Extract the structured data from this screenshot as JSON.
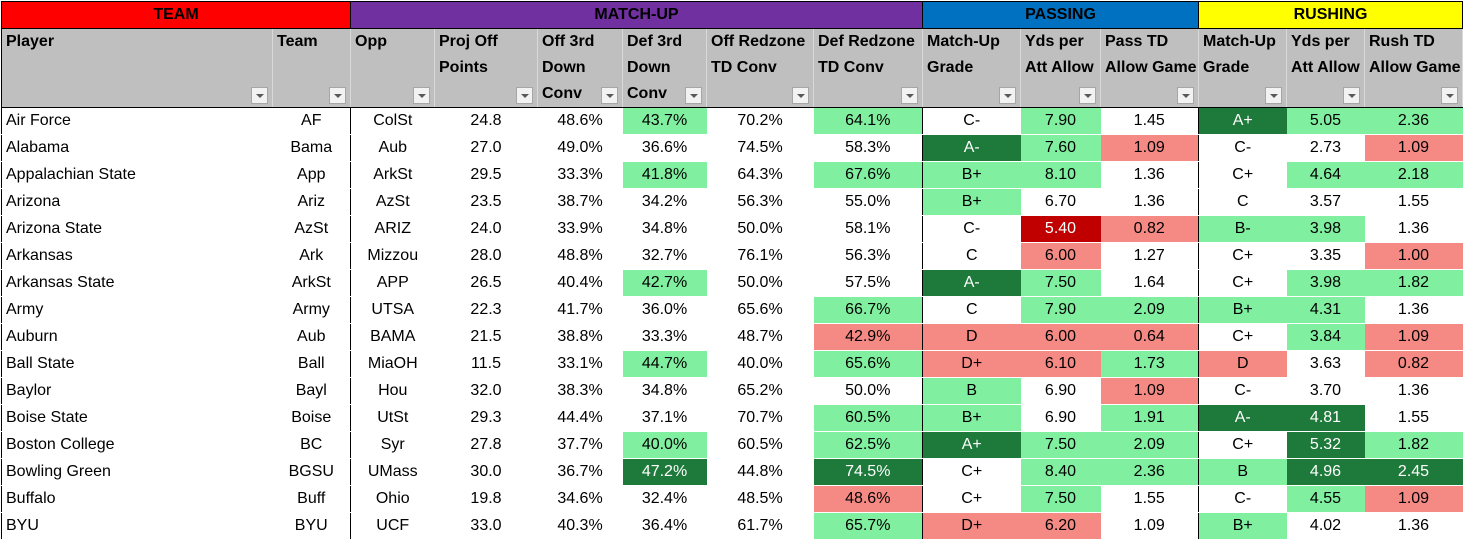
{
  "colors": {
    "team_header": "#ff0000",
    "matchup_header": "#7030a0",
    "passing_header": "#0070c0",
    "rushing_header": "#ffff00",
    "light_green": "#80f0a0",
    "dark_green": "#1d7a3a",
    "pink": "#f58a85",
    "dark_red": "#c00000"
  },
  "groups": {
    "team": "TEAM",
    "matchup": "MATCH-UP",
    "passing": "PASSING",
    "rushing": "RUSHING"
  },
  "columns": [
    "Player",
    "Team",
    "Opp",
    "Proj Off Points",
    "Off 3rd Down Conv",
    "Def 3rd Down Conv",
    "Off Redzone TD Conv",
    "Def Redzone TD Conv",
    "Match-Up Grade",
    "Yds per Att Allow",
    "Pass TD Allow Game",
    "Match-Up Grade",
    "Yds per Att Allow",
    "Rush TD Allow Game"
  ],
  "rows": [
    [
      "Air Force",
      "AF",
      "ColSt",
      "24.8",
      "48.6%",
      "43.7%",
      "70.2%",
      "64.1%",
      "C-",
      "7.90",
      "1.45",
      "A+",
      "5.05",
      "2.36"
    ],
    [
      "Alabama",
      "Bama",
      "Aub",
      "27.0",
      "49.0%",
      "36.6%",
      "74.5%",
      "58.3%",
      "A-",
      "7.60",
      "1.09",
      "C-",
      "2.73",
      "1.09"
    ],
    [
      "Appalachian State",
      "App",
      "ArkSt",
      "29.5",
      "33.3%",
      "41.8%",
      "64.3%",
      "67.6%",
      "B+",
      "8.10",
      "1.36",
      "C+",
      "4.64",
      "2.18"
    ],
    [
      "Arizona",
      "Ariz",
      "AzSt",
      "23.5",
      "38.7%",
      "34.2%",
      "56.3%",
      "55.0%",
      "B+",
      "6.70",
      "1.36",
      "C",
      "3.57",
      "1.55"
    ],
    [
      "Arizona State",
      "AzSt",
      "ARIZ",
      "24.0",
      "33.9%",
      "34.8%",
      "50.0%",
      "58.1%",
      "C-",
      "5.40",
      "0.82",
      "B-",
      "3.98",
      "1.36"
    ],
    [
      "Arkansas",
      "Ark",
      "Mizzou",
      "28.0",
      "48.8%",
      "32.7%",
      "76.1%",
      "56.3%",
      "C",
      "6.00",
      "1.27",
      "C+",
      "3.35",
      "1.00"
    ],
    [
      "Arkansas State",
      "ArkSt",
      "APP",
      "26.5",
      "40.4%",
      "42.7%",
      "50.0%",
      "57.5%",
      "A-",
      "7.50",
      "1.64",
      "C+",
      "3.98",
      "1.82"
    ],
    [
      "Army",
      "Army",
      "UTSA",
      "22.3",
      "41.7%",
      "36.0%",
      "65.6%",
      "66.7%",
      "C",
      "7.90",
      "2.09",
      "B+",
      "4.31",
      "1.36"
    ],
    [
      "Auburn",
      "Aub",
      "BAMA",
      "21.5",
      "38.8%",
      "33.3%",
      "48.7%",
      "42.9%",
      "D",
      "6.00",
      "0.64",
      "C+",
      "3.84",
      "1.09"
    ],
    [
      "Ball State",
      "Ball",
      "MiaOH",
      "11.5",
      "33.1%",
      "44.7%",
      "40.0%",
      "65.6%",
      "D+",
      "6.10",
      "1.73",
      "D",
      "3.63",
      "0.82"
    ],
    [
      "Baylor",
      "Bayl",
      "Hou",
      "32.0",
      "38.3%",
      "34.8%",
      "65.2%",
      "50.0%",
      "B",
      "6.90",
      "1.09",
      "C-",
      "3.70",
      "1.36"
    ],
    [
      "Boise State",
      "Boise",
      "UtSt",
      "29.3",
      "44.4%",
      "37.1%",
      "70.7%",
      "60.5%",
      "B+",
      "6.90",
      "1.91",
      "A-",
      "4.81",
      "1.55"
    ],
    [
      "Boston College",
      "BC",
      "Syr",
      "27.8",
      "37.7%",
      "40.0%",
      "60.5%",
      "62.5%",
      "A+",
      "7.50",
      "2.09",
      "C+",
      "5.32",
      "1.82"
    ],
    [
      "Bowling Green",
      "BGSU",
      "UMass",
      "30.0",
      "36.7%",
      "47.2%",
      "44.8%",
      "74.5%",
      "C+",
      "8.40",
      "2.36",
      "B",
      "4.96",
      "2.45"
    ],
    [
      "Buffalo",
      "Buff",
      "Ohio",
      "19.8",
      "34.6%",
      "32.4%",
      "48.5%",
      "48.6%",
      "C+",
      "7.50",
      "1.55",
      "C-",
      "4.55",
      "1.09"
    ],
    [
      "BYU",
      "BYU",
      "UCF",
      "33.0",
      "40.3%",
      "36.4%",
      "61.7%",
      "65.7%",
      "D+",
      "6.20",
      "1.09",
      "B+",
      "4.02",
      "1.36"
    ]
  ],
  "cell_fills": [
    [
      "",
      "",
      "",
      "",
      "",
      "lg",
      "",
      "lg",
      "",
      "lg",
      "",
      "dg",
      "lg",
      "lg"
    ],
    [
      "",
      "",
      "",
      "",
      "",
      "",
      "",
      "",
      "dg",
      "lg",
      "pk",
      "",
      "",
      "pk"
    ],
    [
      "",
      "",
      "",
      "",
      "",
      "lg",
      "",
      "lg",
      "lg",
      "lg",
      "",
      "",
      "lg",
      "lg"
    ],
    [
      "",
      "",
      "",
      "",
      "",
      "",
      "",
      "",
      "lg",
      "",
      "",
      "",
      "",
      ""
    ],
    [
      "",
      "",
      "",
      "",
      "",
      "",
      "",
      "",
      "",
      "dr",
      "pk",
      "lg",
      "lg",
      ""
    ],
    [
      "",
      "",
      "",
      "",
      "",
      "",
      "",
      "",
      "",
      "pk",
      "",
      "",
      "",
      "pk"
    ],
    [
      "",
      "",
      "",
      "",
      "",
      "lg",
      "",
      "",
      "dg",
      "lg",
      "",
      "",
      "lg",
      "lg"
    ],
    [
      "",
      "",
      "",
      "",
      "",
      "",
      "",
      "lg",
      "",
      "lg",
      "lg",
      "lg",
      "lg",
      ""
    ],
    [
      "",
      "",
      "",
      "",
      "",
      "",
      "",
      "pk",
      "pk",
      "pk",
      "pk",
      "",
      "lg",
      "pk"
    ],
    [
      "",
      "",
      "",
      "",
      "",
      "lg",
      "",
      "lg",
      "pk",
      "pk",
      "lg",
      "pk",
      "",
      "pk"
    ],
    [
      "",
      "",
      "",
      "",
      "",
      "",
      "",
      "",
      "lg",
      "",
      "pk",
      "",
      "",
      ""
    ],
    [
      "",
      "",
      "",
      "",
      "",
      "",
      "",
      "lg",
      "lg",
      "",
      "lg",
      "dg",
      "dg",
      ""
    ],
    [
      "",
      "",
      "",
      "",
      "",
      "lg",
      "",
      "lg",
      "dg",
      "lg",
      "lg",
      "",
      "dg",
      "lg"
    ],
    [
      "",
      "",
      "",
      "",
      "",
      "dg",
      "",
      "dg",
      "",
      "lg",
      "lg",
      "lg",
      "dg",
      "dg"
    ],
    [
      "",
      "",
      "",
      "",
      "",
      "",
      "",
      "pk",
      "",
      "lg",
      "",
      "",
      "lg",
      "pk"
    ],
    [
      "",
      "",
      "",
      "",
      "",
      "",
      "",
      "lg",
      "pk",
      "pk",
      "",
      "lg",
      "",
      ""
    ]
  ]
}
